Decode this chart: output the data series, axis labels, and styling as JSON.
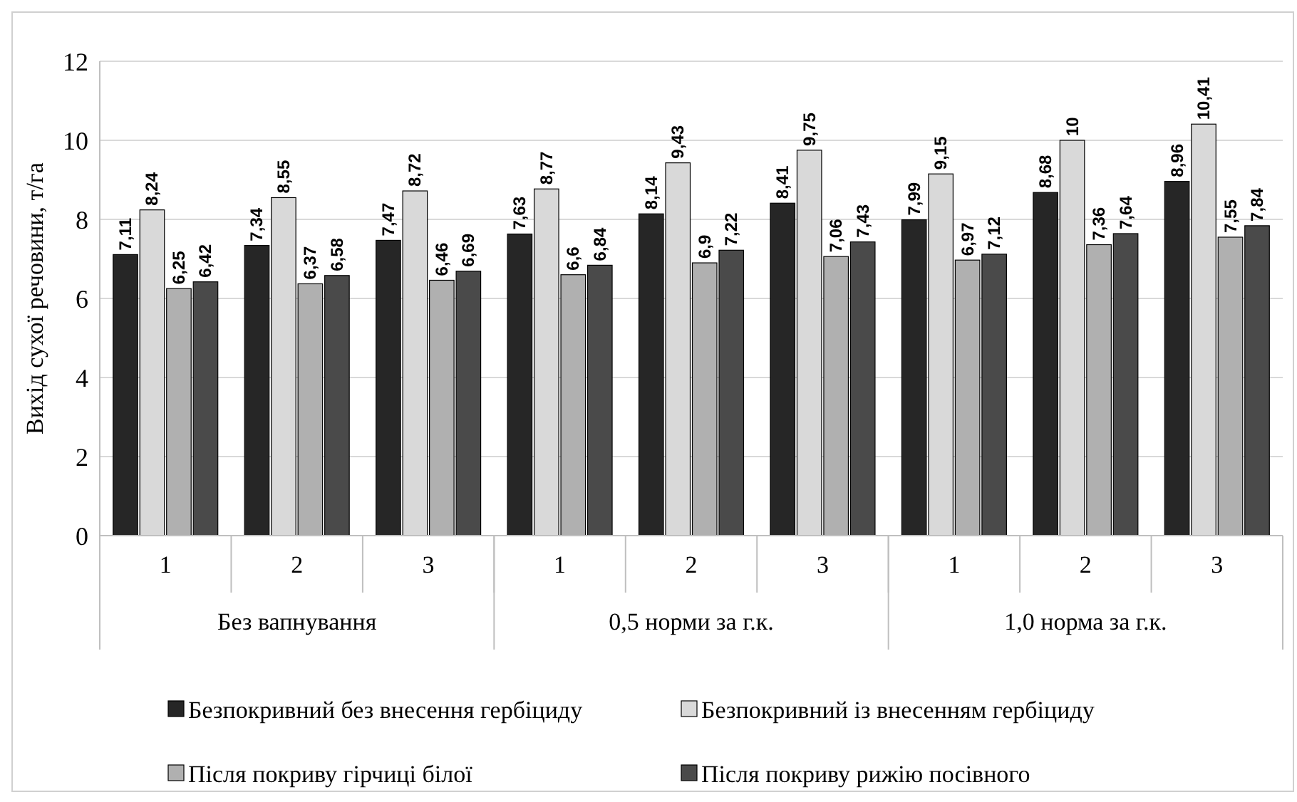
{
  "chart_data": {
    "type": "bar",
    "ylabel": "Вихід сухої речовини, т/га",
    "categories": [
      "1",
      "2",
      "3",
      "1",
      "2",
      "3",
      "1",
      "2",
      "3"
    ],
    "annotations": [
      "Без вапнування",
      "0,5 норми за г.к.",
      "1,0 норма за г.к."
    ],
    "series": [
      {
        "name": "Безпокривний без внесення гербіциду",
        "color": "#262626",
        "values": [
          7.11,
          7.34,
          7.47,
          7.63,
          8.14,
          8.41,
          7.99,
          8.68,
          8.96
        ],
        "value_labels": [
          "7,11",
          "7,34",
          "7,47",
          "7,63",
          "8,14",
          "8,41",
          "7,99",
          "8,68",
          "8,96"
        ]
      },
      {
        "name": "Безпокривний із внесенням гербіциду",
        "color": "#d9d9d9",
        "values": [
          8.24,
          8.55,
          8.72,
          8.77,
          9.43,
          9.75,
          9.15,
          10,
          10.41
        ],
        "value_labels": [
          "8,24",
          "8,55",
          "8,72",
          "8,77",
          "9,43",
          "9,75",
          "9,15",
          "10",
          "10,41"
        ]
      },
      {
        "name": "Після покриву гірчиці білої",
        "color": "#b0b0b0",
        "values": [
          6.25,
          6.37,
          6.46,
          6.6,
          6.9,
          7.06,
          6.97,
          7.36,
          7.55
        ],
        "value_labels": [
          "6,25",
          "6,37",
          "6,46",
          "6,6",
          "6,9",
          "7,06",
          "6,97",
          "7,36",
          "7,55"
        ]
      },
      {
        "name": "Після покриву рижію посівного",
        "color": "#4a4a4a",
        "values": [
          6.42,
          6.58,
          6.69,
          6.84,
          7.22,
          7.43,
          7.12,
          7.64,
          7.84
        ],
        "value_labels": [
          "6,42",
          "6,58",
          "6,69",
          "6,84",
          "7,22",
          "7,43",
          "7,12",
          "7,64",
          "7,84"
        ]
      }
    ],
    "ylim": [
      0,
      12
    ],
    "yticks": [
      0,
      2,
      4,
      6,
      8,
      10,
      12
    ],
    "grid": "y",
    "legend": "bottom"
  }
}
